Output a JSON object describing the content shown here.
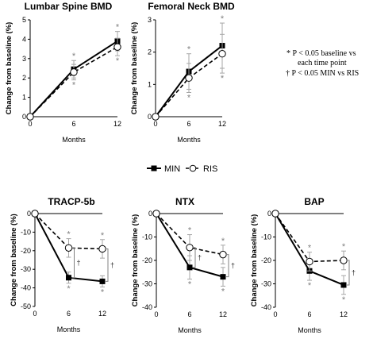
{
  "note_lines": [
    "* P < 0.05 baseline vs",
    "each time point",
    "† P < 0.05 MIN vs RIS"
  ],
  "legend": {
    "min_label": "MIN",
    "ris_label": "RIS"
  },
  "chart_data": [
    {
      "type": "line",
      "title": "Lumbar Spine BMD",
      "xlabel": "Months",
      "ylabel": "Change from baseline (%)",
      "x": [
        0,
        6,
        12
      ],
      "ylim": [
        0,
        5
      ],
      "yticks": [
        0,
        1,
        2,
        3,
        4,
        5
      ],
      "series": [
        {
          "name": "MIN",
          "values": [
            0,
            2.45,
            3.9
          ],
          "err": [
            0,
            0.45,
            0.5
          ]
        },
        {
          "name": "RIS",
          "values": [
            0,
            2.3,
            3.6
          ],
          "err": [
            0,
            0.4,
            0.45
          ]
        }
      ],
      "stars_above": [
        6,
        12
      ],
      "stars_below": [
        6,
        12
      ],
      "dagger_at": []
    },
    {
      "type": "line",
      "title": "Femoral Neck BMD",
      "xlabel": "Months",
      "ylabel": "Change from baseline (%)",
      "x": [
        0,
        6,
        12
      ],
      "ylim": [
        0,
        3
      ],
      "yticks": [
        0,
        1,
        2,
        3
      ],
      "series": [
        {
          "name": "MIN",
          "values": [
            0,
            1.4,
            2.2
          ],
          "err": [
            0,
            0.55,
            0.7
          ]
        },
        {
          "name": "RIS",
          "values": [
            0,
            1.2,
            1.95
          ],
          "err": [
            0,
            0.45,
            0.6
          ]
        }
      ],
      "stars_above": [
        6,
        12
      ],
      "stars_below": [
        6,
        12
      ],
      "dagger_at": []
    },
    {
      "type": "line",
      "title": "TRACP-5b",
      "xlabel": "Months",
      "ylabel": "Change from baseline (%)",
      "x": [
        0,
        6,
        12
      ],
      "ylim": [
        -50,
        0
      ],
      "yticks": [
        0,
        -10,
        -20,
        -30,
        -40,
        -50
      ],
      "series": [
        {
          "name": "MIN",
          "values": [
            0,
            -34.5,
            -36.5
          ],
          "err": [
            0,
            3,
            3
          ]
        },
        {
          "name": "RIS",
          "values": [
            0,
            -18.5,
            -19
          ],
          "err": [
            0,
            5,
            5
          ]
        }
      ],
      "stars_above": [
        6,
        12
      ],
      "stars_below": [
        6,
        12
      ],
      "dagger_at": [
        6,
        12
      ]
    },
    {
      "type": "line",
      "title": "NTX",
      "xlabel": "Months",
      "ylabel": "Change from baseline (%)",
      "x": [
        0,
        6,
        12
      ],
      "ylim": [
        -40,
        0
      ],
      "yticks": [
        0,
        -10,
        -20,
        -30,
        -40
      ],
      "series": [
        {
          "name": "MIN",
          "values": [
            0,
            -23,
            -27
          ],
          "err": [
            0,
            5,
            4
          ]
        },
        {
          "name": "RIS",
          "values": [
            0,
            -14.5,
            -17.5
          ],
          "err": [
            0,
            5.5,
            4
          ]
        }
      ],
      "stars_above": [
        6,
        12
      ],
      "stars_below": [
        6,
        12
      ],
      "dagger_at": [
        6,
        12
      ]
    },
    {
      "type": "line",
      "title": "BAP",
      "xlabel": "Months",
      "ylabel": "Change from baseline (%)",
      "x": [
        0,
        6,
        12
      ],
      "ylim": [
        -40,
        0
      ],
      "yticks": [
        0,
        -10,
        -20,
        -30,
        -40
      ],
      "series": [
        {
          "name": "MIN",
          "values": [
            0,
            -24.5,
            -30.5
          ],
          "err": [
            0,
            4,
            4
          ]
        },
        {
          "name": "RIS",
          "values": [
            0,
            -20.5,
            -20
          ],
          "err": [
            0,
            4,
            4
          ]
        }
      ],
      "stars_above": [
        6,
        12
      ],
      "stars_below": [
        6,
        12
      ],
      "dagger_at": [
        12
      ]
    }
  ]
}
